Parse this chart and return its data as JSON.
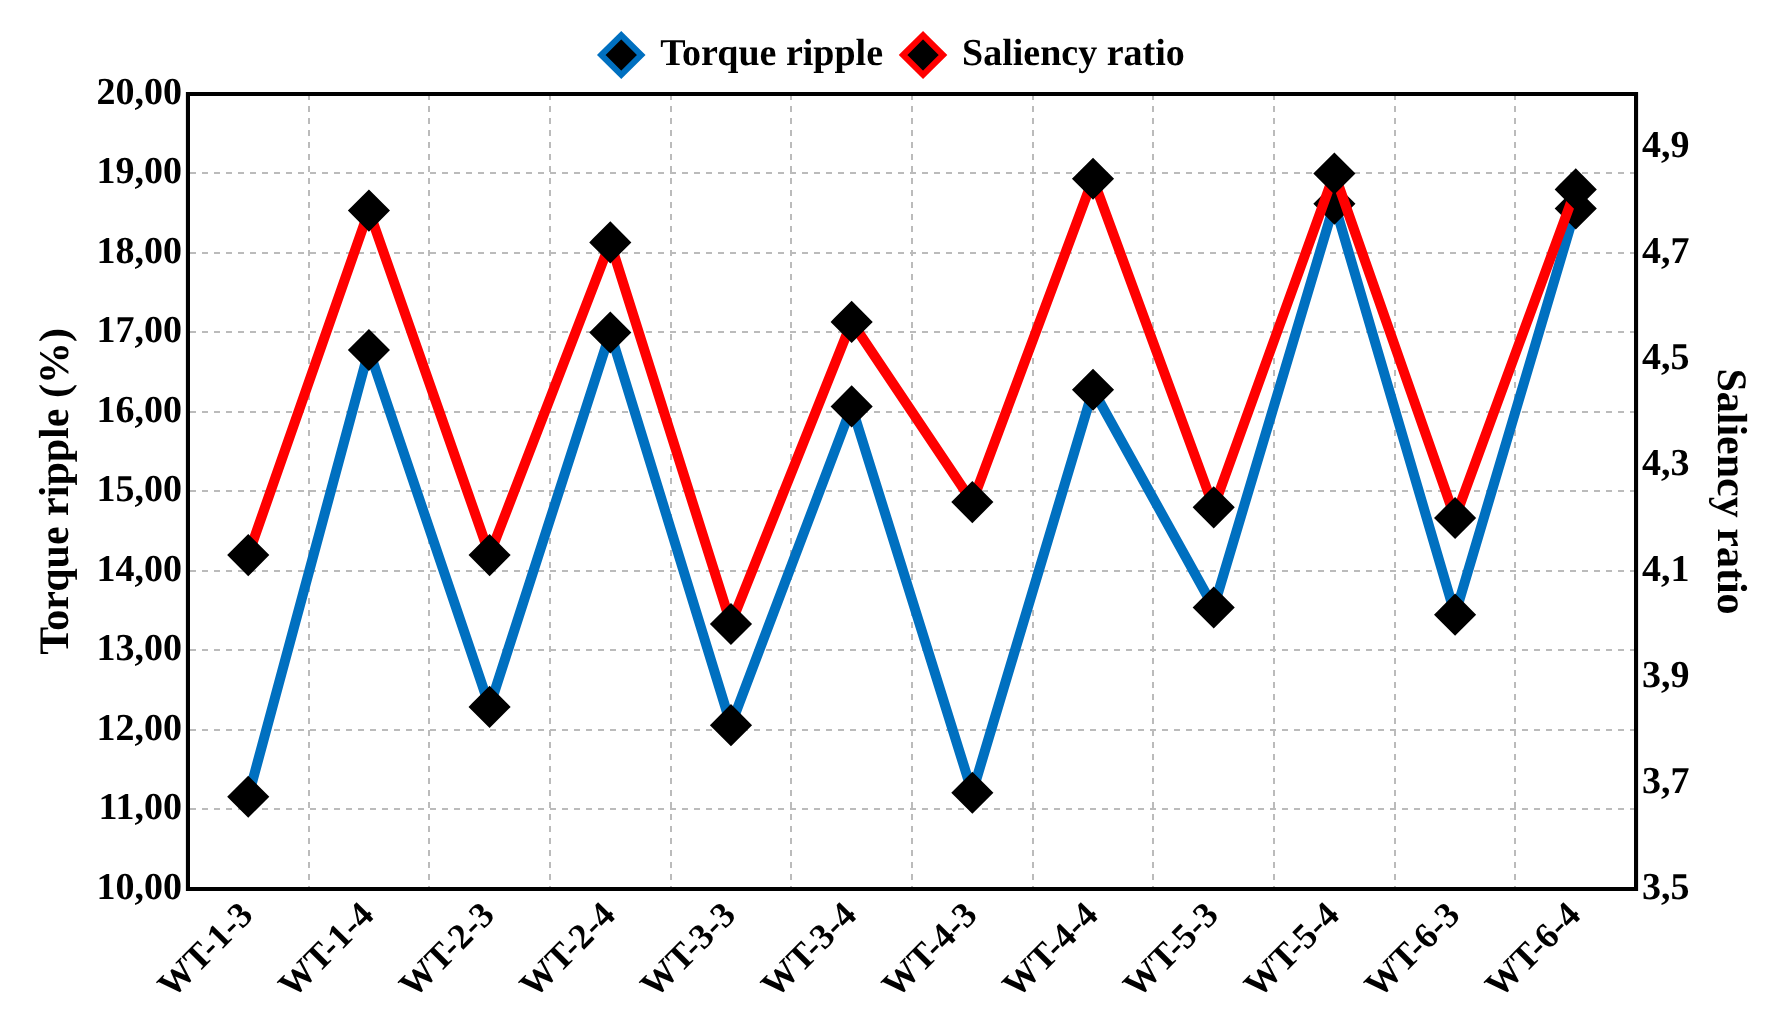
{
  "chart_data": {
    "type": "line",
    "categories": [
      "WT-1-3",
      "WT-1-4",
      "WT-2-3",
      "WT-2-4",
      "WT-3-3",
      "WT-3-4",
      "WT-4-3",
      "WT-4-4",
      "WT-5-3",
      "WT-5-4",
      "WT-6-3",
      "WT-6-4"
    ],
    "series": [
      {
        "name": "Torque ripple",
        "color": "#0070c0",
        "values": [
          11.16,
          16.78,
          12.29,
          17.0,
          12.06,
          16.07,
          11.21,
          16.28,
          13.54,
          18.62,
          13.45,
          18.56
        ]
      },
      {
        "name": "Saliency ratio",
        "color": "#ff0000",
        "axis": "y2",
        "values": [
          4.13,
          4.78,
          4.13,
          4.72,
          4.0,
          4.57,
          4.23,
          4.84,
          4.22,
          4.85,
          4.2,
          4.82
        ]
      }
    ],
    "ylabel": "Torque ripple (%)",
    "y2label": "Saliency ratio",
    "ylim": [
      10,
      20
    ],
    "yticks": [
      {
        "value": 10,
        "label": "10,00"
      },
      {
        "value": 11,
        "label": "11,00"
      },
      {
        "value": 12,
        "label": "12,00"
      },
      {
        "value": 13,
        "label": "13,00"
      },
      {
        "value": 14,
        "label": "14,00"
      },
      {
        "value": 15,
        "label": "15,00"
      },
      {
        "value": 16,
        "label": "16,00"
      },
      {
        "value": 17,
        "label": "17,00"
      },
      {
        "value": 18,
        "label": "18,00"
      },
      {
        "value": 19,
        "label": "19,00"
      },
      {
        "value": 20,
        "label": "20,00"
      }
    ],
    "y2lim": [
      3.5,
      5.0
    ],
    "y2ticks": [
      {
        "value": 3.5,
        "label": "3,5"
      },
      {
        "value": 3.7,
        "label": "3,7"
      },
      {
        "value": 3.9,
        "label": "3,9"
      },
      {
        "value": 4.1,
        "label": "4,1"
      },
      {
        "value": 4.3,
        "label": "4,3"
      },
      {
        "value": 4.5,
        "label": "4,5"
      },
      {
        "value": 4.7,
        "label": "4,7"
      },
      {
        "value": 4.9,
        "label": "4,9"
      }
    ],
    "grid": true,
    "legend": "top",
    "marker": "diamond",
    "line_style": "solid"
  }
}
